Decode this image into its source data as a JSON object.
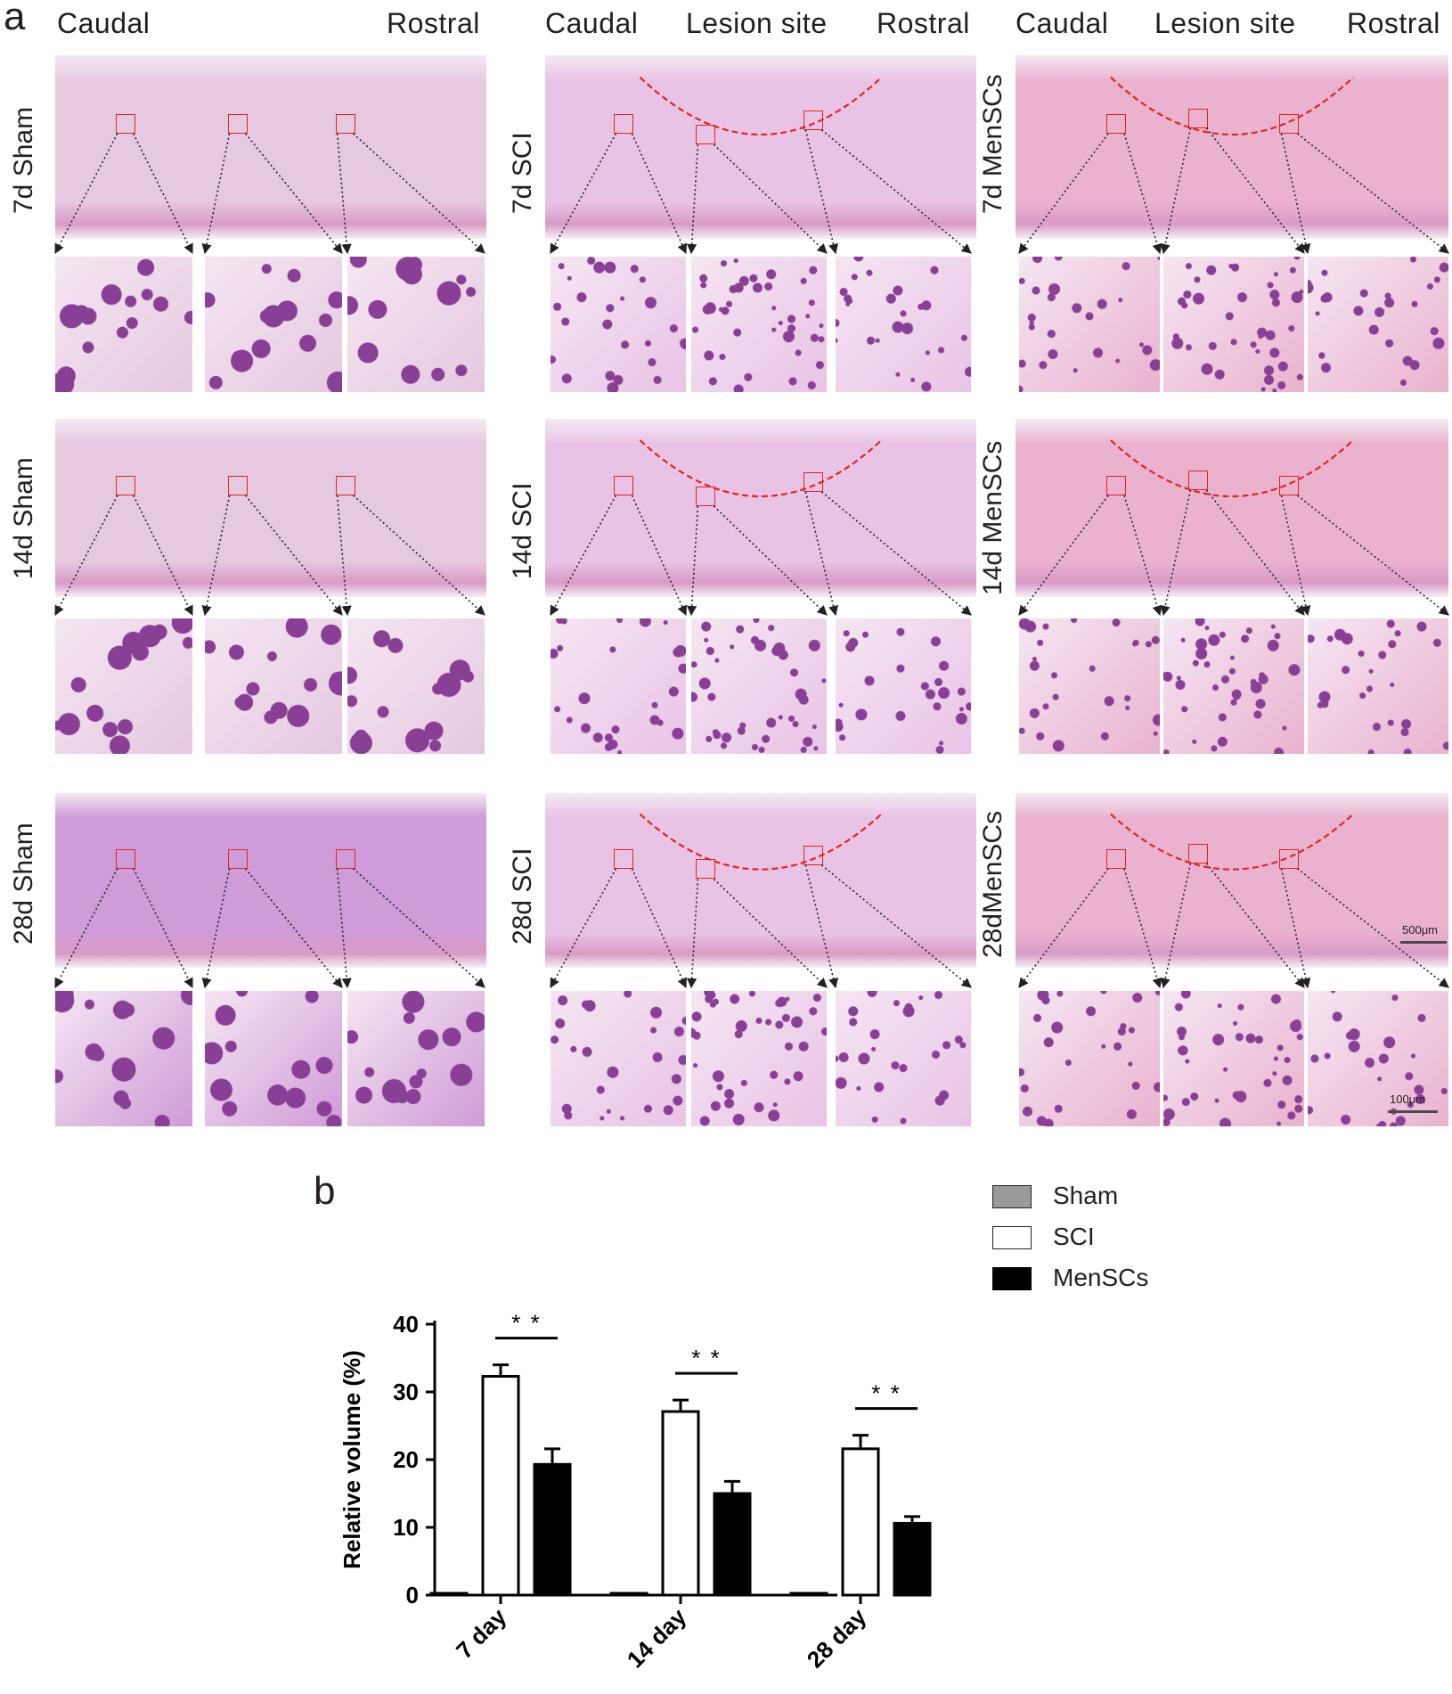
{
  "panel_a": {
    "letter": "a",
    "columns": [
      {
        "headers": [
          "Caudal",
          "Rostral"
        ]
      },
      {
        "headers": [
          "Caudal",
          "Lesion site",
          "Rostral"
        ]
      },
      {
        "headers": [
          "Caudal",
          "Lesion site",
          "Rostral"
        ]
      }
    ],
    "rows": [
      [
        "7d  Sham",
        "7d  SCI",
        "7d MenSCs"
      ],
      [
        "14d Sham",
        "14d  SCI",
        "14d MenSCs"
      ],
      [
        "28d Sham",
        "28d  SCI",
        "28dMenSCs"
      ]
    ],
    "scale_overview": "500μm",
    "scale_inset": "100μm",
    "stain_colors": {
      "sham": "#e6c8e0",
      "sham_late": "#cf9bd8",
      "sci": "#e9c3e6",
      "mensc": "#eab2cf",
      "nuclei": "#8a3f97"
    }
  },
  "panel_b": {
    "letter": "b",
    "legend": [
      {
        "label": "Sham",
        "fill": "#9a9a9a"
      },
      {
        "label": "SCI",
        "fill": "#ffffff"
      },
      {
        "label": "MenSCs",
        "fill": "#000000"
      }
    ],
    "significance": [
      "* *",
      "* *",
      "* *"
    ]
  },
  "chart_data": {
    "type": "bar",
    "categories": [
      "7 day",
      "14 day",
      "28 day"
    ],
    "series": [
      {
        "name": "Sham",
        "values": [
          0.2,
          0.2,
          0.2
        ],
        "errors": [
          0,
          0,
          0
        ]
      },
      {
        "name": "SCI",
        "values": [
          32.3,
          27.1,
          21.6
        ],
        "errors": [
          1.7,
          1.7,
          2.0
        ]
      },
      {
        "name": "MenSCs",
        "values": [
          19.3,
          15.0,
          10.6
        ],
        "errors": [
          2.3,
          1.8,
          1.0
        ]
      }
    ],
    "ylabel": "Relative volume (%)",
    "xlabel": "",
    "ylim": [
      0,
      40
    ],
    "yticks": [
      0,
      10,
      20,
      30,
      40
    ],
    "grid": false
  }
}
